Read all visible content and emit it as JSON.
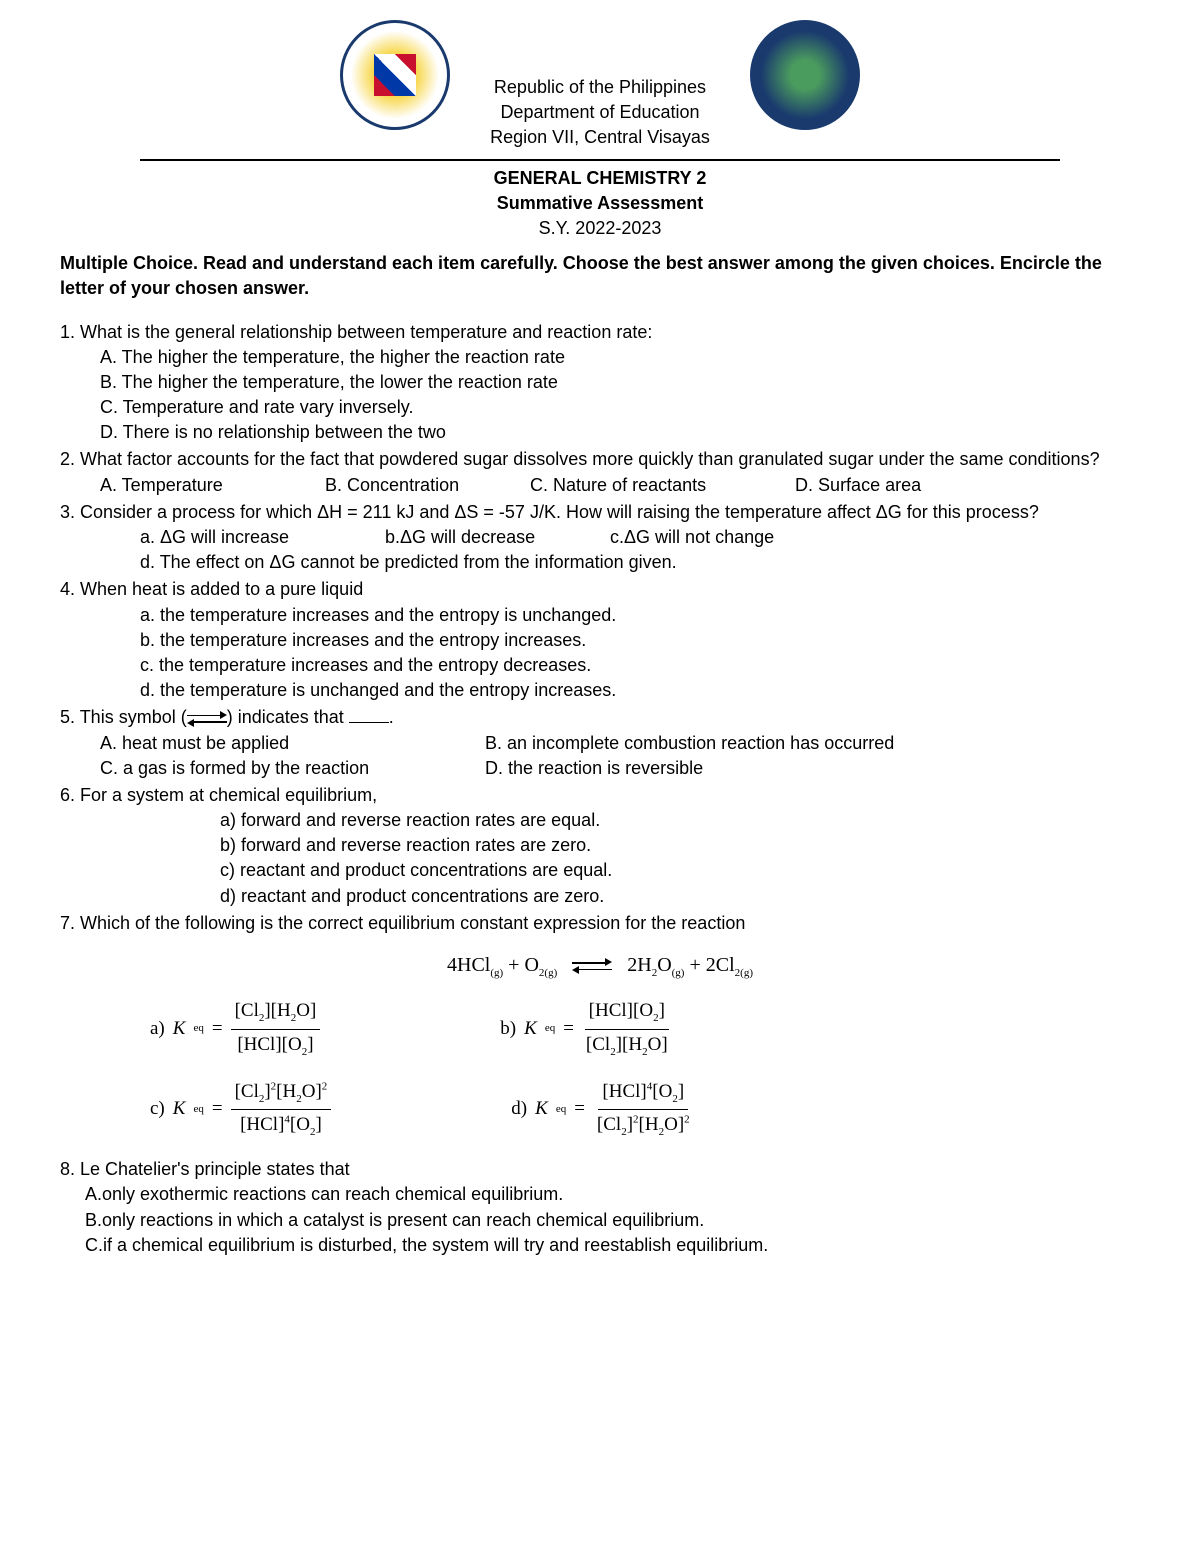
{
  "header": {
    "line1": "Republic of the Philippines",
    "line2": "Department of Education",
    "line3": "Region VII, Central Visayas"
  },
  "title": {
    "main": "GENERAL CHEMISTRY 2",
    "sub": "Summative Assessment",
    "year": "S.Y. 2022-2023"
  },
  "instructions": "Multiple Choice. Read and understand each item carefully. Choose the best answer among the given choices. Encircle the letter of your chosen answer.",
  "q1": {
    "text": "1. What is the general relationship between temperature and reaction rate:",
    "a": "A. The higher the temperature, the higher the reaction rate",
    "b": "B. The higher the temperature, the lower the reaction rate",
    "c": "C. Temperature and rate vary inversely.",
    "d": "D. There is no relationship between the two"
  },
  "q2": {
    "text": "2.  What factor accounts for the fact that powdered sugar dissolves more quickly than granulated sugar under the same conditions?",
    "a": "A.  Temperature",
    "b": "B. Concentration",
    "c": "C. Nature of reactants",
    "d": "D. Surface area"
  },
  "q3": {
    "text": "3. Consider a process for which ΔH = 211 kJ and ΔS = -57 J/K. How will raising the temperature affect ΔG for this process?",
    "a": "a. ΔG will increase",
    "b": "b.ΔG will decrease",
    "c": "c.ΔG will not change",
    "d": "d. The effect on ΔG cannot be predicted from the information given."
  },
  "q4": {
    "text": "4. When heat is added to a pure liquid",
    "a": "a. the temperature increases and the entropy is unchanged.",
    "b": "b. the temperature increases and the entropy increases.",
    "c": "c. the temperature increases and the entropy decreases.",
    "d": "d. the temperature is unchanged and the entropy increases."
  },
  "q5": {
    "text_prefix": "5. This symbol (",
    "text_suffix": ") indicates that ",
    "a": "A. heat must be applied",
    "b": "B. an incomplete combustion reaction has occurred",
    "c": "C. a gas is formed by the reaction",
    "d": "D. the reaction is reversible"
  },
  "q6": {
    "text": "6. For a system at chemical equilibrium,",
    "a": "a) forward and reverse reaction rates are equal.",
    "b": "b) forward and reverse reaction rates are zero.",
    "c": "c) reactant and product concentrations are equal.",
    "d": "d) reactant and product concentrations are zero."
  },
  "q7": {
    "text": "7. Which of the following is the correct equilibrium constant expression for the reaction",
    "equation": {
      "left": "4HCl",
      "left_sub": "(g)",
      "plus1": " + O",
      "o2_sub": "2(g)",
      "right1": "2H",
      "h2o_sub1": "2",
      "h2o": "O",
      "h2o_sub2": "(g)",
      "plus2": " + 2Cl",
      "cl2_sub": "2(g)"
    },
    "options": {
      "a_label": "a)  ",
      "b_label": "b)  ",
      "c_label": "c)  ",
      "d_label": "d)  "
    }
  },
  "q8": {
    "text": "8. Le Chatelier's principle states that",
    "a": "A.only exothermic reactions can reach chemical equilibrium.",
    "b": "B.only reactions in which a catalyst is present can reach chemical equilibrium.",
    "c": "C.if a chemical equilibrium is disturbed, the system will try and reestablish equilibrium."
  }
}
